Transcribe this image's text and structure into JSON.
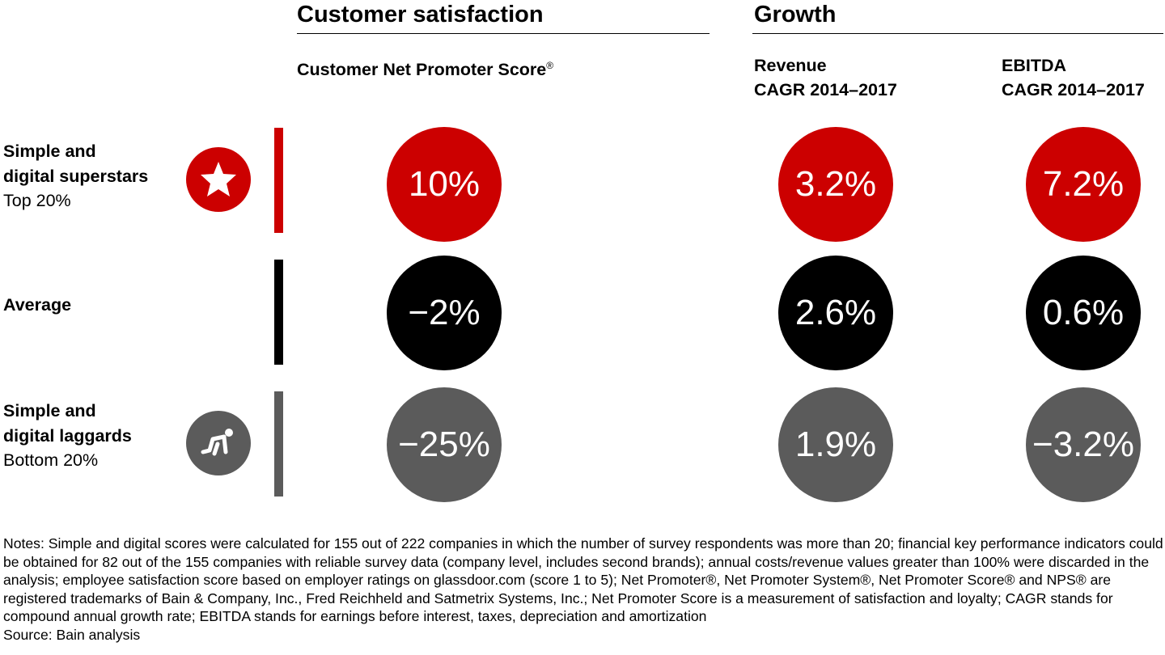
{
  "colors": {
    "superstars": "#cc0000",
    "average": "#000000",
    "laggards": "#5b5b5b"
  },
  "headers": {
    "customer_satisfaction": "Customer satisfaction",
    "growth": "Growth"
  },
  "columns": [
    {
      "label": "Customer Net Promoter Score",
      "sup": "®"
    },
    {
      "label_line1": "Revenue",
      "label_line2": "CAGR 2014–2017"
    },
    {
      "label_line1": "EBITDA",
      "label_line2": "CAGR 2014–2017"
    }
  ],
  "chart_data": {
    "type": "table",
    "columns": [
      "Customer Net Promoter Score®",
      "Revenue CAGR 2014–2017",
      "EBITDA CAGR 2014–2017"
    ],
    "rows": [
      {
        "label_line1": "Simple and",
        "label_line2": "digital superstars",
        "sublabel": "Top 20%",
        "icon": "star-icon",
        "values": [
          "10%",
          "3.2%",
          "7.2%"
        ]
      },
      {
        "label_line1": "Average",
        "label_line2": "",
        "sublabel": "",
        "icon": "",
        "values": [
          "−2%",
          "2.6%",
          "0.6%"
        ]
      },
      {
        "label_line1": "Simple and",
        "label_line2": "digital laggards",
        "sublabel": "Bottom 20%",
        "icon": "crawling-person-icon",
        "values": [
          "−25%",
          "1.9%",
          "−3.2%"
        ]
      }
    ]
  },
  "notes": "Notes: Simple and digital scores were calculated for 155 out of 222 companies in which the number of survey respondents was more than 20; financial key performance indicators could be obtained for 82 out of the 155 companies with reliable survey data (company level, includes second brands); annual costs/revenue values greater than 100% were discarded in the analysis; employee satisfaction score based on employer ratings on glassdoor.com (score 1 to 5); Net Promoter®, Net Promoter System®, Net Promoter Score® and NPS® are registered trademarks of Bain & Company, Inc., Fred Reichheld and Satmetrix Systems, Inc.; Net Promoter Score is a measurement of satisfaction and loyalty; CAGR stands for compound annual growth rate; EBITDA stands for earnings before interest, taxes, depreciation and amortization",
  "source": "Source: Bain analysis"
}
